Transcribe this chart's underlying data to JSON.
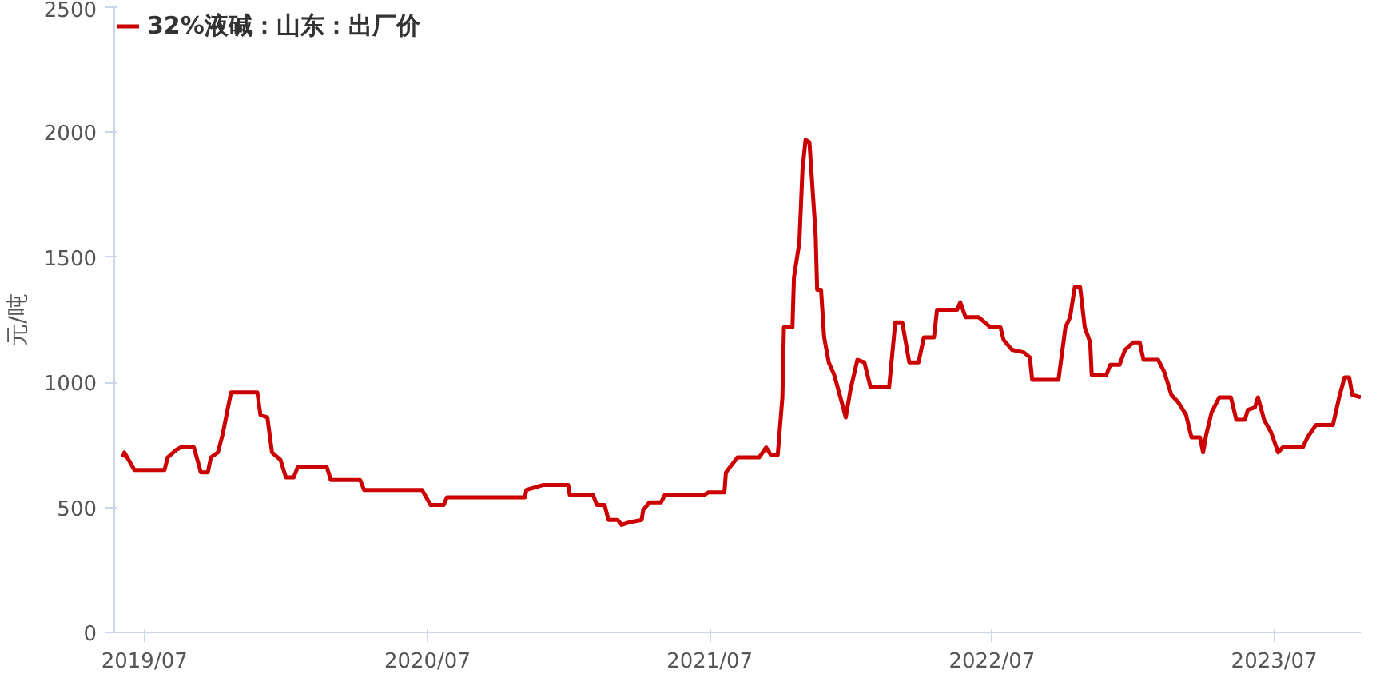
{
  "chart_data": {
    "type": "line",
    "ylabel": "元/吨",
    "legend": "top left",
    "grid": false,
    "marker": "none",
    "line_style": "solid",
    "xlim": [
      "2019-05-23",
      "2023-10-21"
    ],
    "xticks": [
      {
        "value": "2019-07",
        "label": "2019/07"
      },
      {
        "value": "2020-07",
        "label": "2020/07"
      },
      {
        "value": "2021-07",
        "label": "2021/07"
      },
      {
        "value": "2022-07",
        "label": "2022/07"
      },
      {
        "value": "2023-07",
        "label": "2023/07"
      }
    ],
    "ylim": [
      0,
      2500
    ],
    "yticks": [
      0,
      500,
      1000,
      1500,
      2000,
      2500
    ],
    "series": [
      {
        "name": "32%液碱：山东：出厂价",
        "color": "#cc0000",
        "x": [
          "2019-06-03",
          "2019-06-05",
          "2019-06-18",
          "2019-07-27",
          "2019-07-31",
          "2019-08-11",
          "2019-08-17",
          "2019-09-03",
          "2019-09-12",
          "2019-09-21",
          "2019-09-25",
          "2019-10-04",
          "2019-10-10",
          "2019-10-21",
          "2019-11-24",
          "2019-11-28",
          "2019-12-07",
          "2019-12-13",
          "2019-12-24",
          "2019-12-31",
          "2020-01-10",
          "2020-01-15",
          "2020-02-22",
          "2020-02-27",
          "2020-04-05",
          "2020-04-10",
          "2020-06-24",
          "2020-07-05",
          "2020-07-22",
          "2020-07-26",
          "2020-11-04",
          "2020-11-06",
          "2020-11-28",
          "2020-12-30",
          "2021-01-01",
          "2021-01-31",
          "2021-02-05",
          "2021-02-15",
          "2021-02-20",
          "2021-03-04",
          "2021-03-09",
          "2021-03-19",
          "2021-04-04",
          "2021-04-06",
          "2021-04-14",
          "2021-04-29",
          "2021-05-04",
          "2021-06-24",
          "2021-06-29",
          "2021-07-20",
          "2021-07-22",
          "2021-08-06",
          "2021-09-03",
          "2021-09-12",
          "2021-09-18",
          "2021-09-27",
          "2021-10-03",
          "2021-10-05",
          "2021-10-16",
          "2021-10-18",
          "2021-10-25",
          "2021-10-29",
          "2021-11-02",
          "2021-11-07",
          "2021-11-15",
          "2021-11-17",
          "2021-11-22",
          "2021-11-26",
          "2021-12-02",
          "2021-12-09",
          "2021-12-17",
          "2021-12-24",
          "2021-12-30",
          "2022-01-08",
          "2022-01-17",
          "2022-01-25",
          "2022-02-18",
          "2022-02-26",
          "2022-03-07",
          "2022-03-16",
          "2022-03-28",
          "2022-04-04",
          "2022-04-17",
          "2022-04-21",
          "2022-05-17",
          "2022-05-21",
          "2022-05-28",
          "2022-06-14",
          "2022-06-29",
          "2022-07-12",
          "2022-07-16",
          "2022-07-27",
          "2022-08-11",
          "2022-08-19",
          "2022-08-22",
          "2022-09-25",
          "2022-10-04",
          "2022-10-10",
          "2022-10-16",
          "2022-10-23",
          "2022-10-29",
          "2022-11-05",
          "2022-11-07",
          "2022-11-26",
          "2022-12-01",
          "2022-12-13",
          "2022-12-20",
          "2022-12-31",
          "2023-01-08",
          "2023-01-13",
          "2023-02-01",
          "2023-02-09",
          "2023-02-18",
          "2023-02-27",
          "2023-03-09",
          "2023-03-16",
          "2023-03-27",
          "2023-03-31",
          "2023-04-04",
          "2023-04-11",
          "2023-04-21",
          "2023-05-06",
          "2023-05-13",
          "2023-05-24",
          "2023-05-28",
          "2023-06-06",
          "2023-06-10",
          "2023-06-18",
          "2023-06-27",
          "2023-07-06",
          "2023-07-12",
          "2023-08-07",
          "2023-08-13",
          "2023-08-24",
          "2023-09-15",
          "2023-09-23",
          "2023-09-30",
          "2023-10-06",
          "2023-10-10",
          "2023-10-21"
        ],
        "values": [
          700,
          720,
          650,
          650,
          700,
          730,
          740,
          740,
          640,
          640,
          700,
          720,
          790,
          960,
          960,
          870,
          860,
          720,
          690,
          620,
          620,
          660,
          660,
          610,
          610,
          570,
          570,
          510,
          510,
          540,
          540,
          570,
          590,
          590,
          550,
          550,
          510,
          510,
          450,
          450,
          430,
          440,
          450,
          490,
          520,
          520,
          550,
          550,
          560,
          560,
          640,
          700,
          700,
          740,
          710,
          710,
          940,
          1220,
          1220,
          1420,
          1560,
          1850,
          1970,
          1960,
          1590,
          1370,
          1370,
          1180,
          1080,
          1030,
          940,
          860,
          970,
          1090,
          1080,
          980,
          980,
          1240,
          1240,
          1080,
          1080,
          1180,
          1180,
          1290,
          1290,
          1320,
          1260,
          1260,
          1220,
          1220,
          1170,
          1130,
          1120,
          1100,
          1010,
          1010,
          1220,
          1260,
          1380,
          1380,
          1220,
          1160,
          1030,
          1030,
          1070,
          1070,
          1130,
          1160,
          1160,
          1090,
          1090,
          1040,
          950,
          920,
          870,
          780,
          780,
          720,
          790,
          880,
          940,
          940,
          850,
          850,
          890,
          900,
          940,
          850,
          800,
          720,
          740,
          740,
          780,
          830,
          830,
          940,
          1020,
          1020,
          950,
          940
        ]
      }
    ]
  }
}
